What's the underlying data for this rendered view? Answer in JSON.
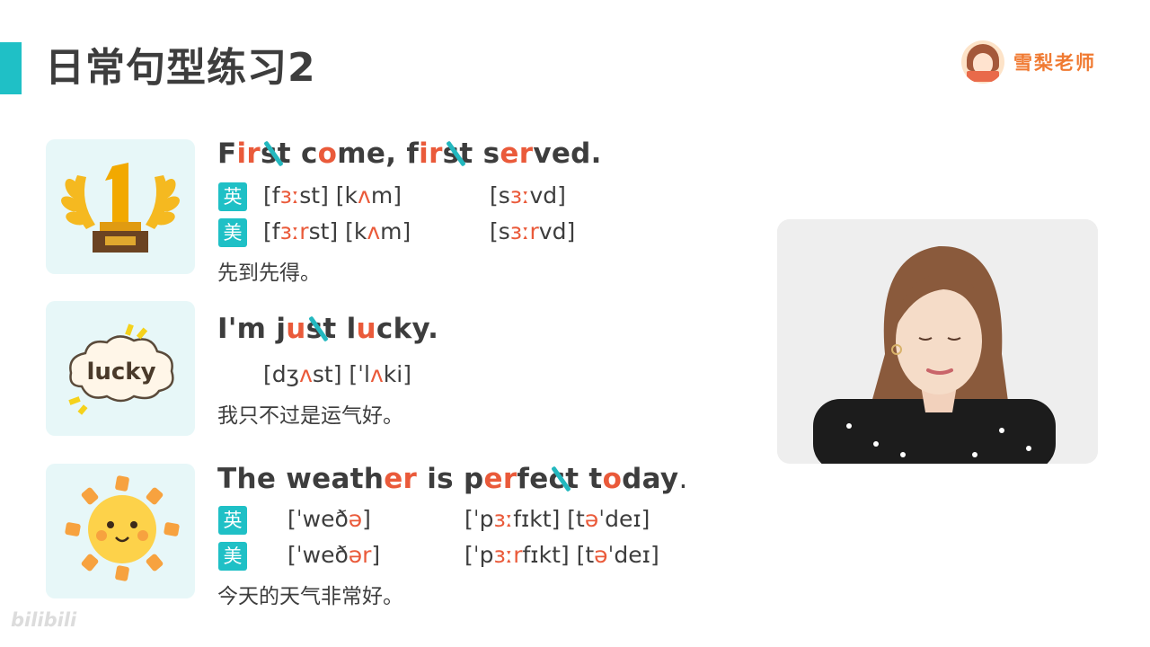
{
  "header": {
    "title": "日常句型练习2",
    "brand": "雪梨老师"
  },
  "tags": {
    "uk": "英",
    "us": "美"
  },
  "items": [
    {
      "sentence_parts": [
        {
          "t": "F",
          "s": "n"
        },
        {
          "t": "ir",
          "s": "h"
        },
        {
          "t": "st",
          "s": "l"
        },
        {
          "t": " c",
          "s": "n"
        },
        {
          "t": "o",
          "s": "h"
        },
        {
          "t": "me, f",
          "s": "n"
        },
        {
          "t": "ir",
          "s": "h"
        },
        {
          "t": "st",
          "s": "l"
        },
        {
          "t": " s",
          "s": "n"
        },
        {
          "t": "er",
          "s": "h"
        },
        {
          "t": "ved.",
          "s": "n"
        }
      ],
      "uk_ipa": [
        "[f",
        "ɜː",
        "st] [k",
        "ʌ",
        "m]"
      ],
      "uk_ipa2": [
        "[s",
        "ɜː",
        "vd]"
      ],
      "us_ipa": [
        "[f",
        "ɜːr",
        "st] [k",
        "ʌ",
        "m]"
      ],
      "us_ipa2": [
        "[s",
        "ɜːr",
        "vd]"
      ],
      "translation": "先到先得。"
    },
    {
      "sentence_parts": [
        {
          "t": "I'm j",
          "s": "n"
        },
        {
          "t": "u",
          "s": "h"
        },
        {
          "t": "st",
          "s": "l"
        },
        {
          "t": " l",
          "s": "n"
        },
        {
          "t": "u",
          "s": "h"
        },
        {
          "t": "cky.",
          "s": "n"
        }
      ],
      "ipa": [
        "[dʒ",
        "ʌ",
        "st] [ˈl",
        "ʌ",
        "ki]"
      ],
      "image_text": "lucky",
      "translation": "我只不过是运气好。"
    },
    {
      "sentence_parts": [
        {
          "t": "The weath",
          "s": "n"
        },
        {
          "t": "er",
          "s": "h"
        },
        {
          "t": " is p",
          "s": "n"
        },
        {
          "t": "er",
          "s": "h"
        },
        {
          "t": "fe",
          "s": "n"
        },
        {
          "t": "ct",
          "s": "l"
        },
        {
          "t": " t",
          "s": "n"
        },
        {
          "t": "o",
          "s": "h"
        },
        {
          "t": "day",
          "s": "n"
        },
        {
          "t": ".",
          "s": "p"
        }
      ],
      "uk_ipa": [
        "[ˈweð",
        "ə",
        "]"
      ],
      "uk_ipa2": [
        "[ˈp",
        "ɜː",
        "fɪkt]  [t",
        "ə",
        "ˈdeɪ]"
      ],
      "us_ipa": [
        "[ˈweð",
        "ər",
        "]"
      ],
      "us_ipa2": [
        "[ˈp",
        "ɜːr",
        "fɪkt] [t",
        "ə",
        "ˈdeɪ]"
      ],
      "translation": "今天的天气非常好。"
    }
  ],
  "watermark": "bilibili",
  "colors": {
    "accent": "#1fc0c6",
    "highlight": "#ea5a3a",
    "brand": "#f07a32"
  }
}
